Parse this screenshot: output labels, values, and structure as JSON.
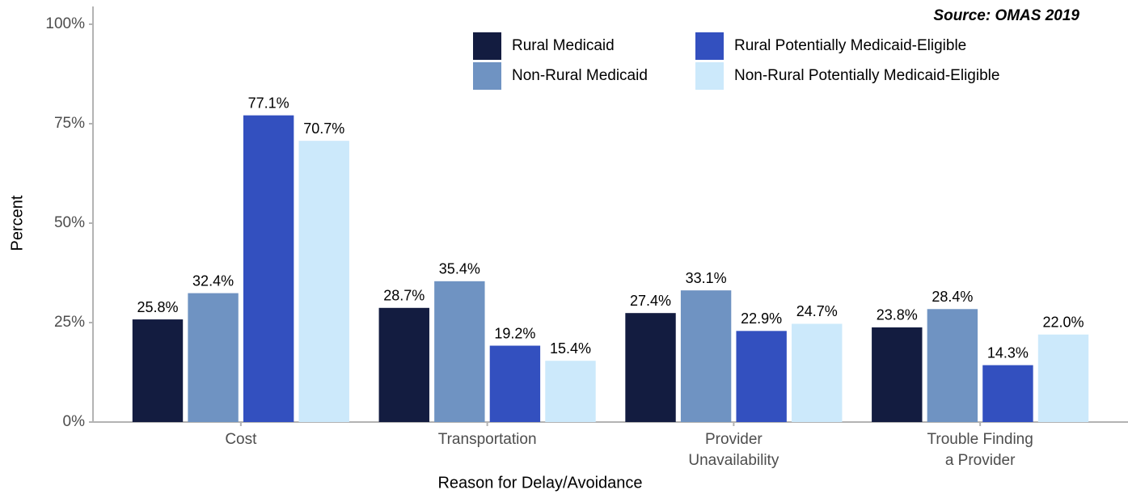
{
  "chart_data": {
    "type": "bar",
    "annotation": "Source: OMAS 2019",
    "x_label": "Reason for Delay/Avoidance",
    "y_label": "Percent",
    "categories": [
      "Cost",
      "Transportation",
      "Provider\nUnavailability",
      "Trouble Finding\na Provider"
    ],
    "series": [
      {
        "name": "Rural Medicaid",
        "color": "#131c40",
        "values": [
          25.8,
          28.7,
          27.4,
          23.8
        ],
        "value_labels": [
          "25.8%",
          "28.7%",
          "27.4%",
          "23.8%"
        ]
      },
      {
        "name": "Non-Rural Medicaid",
        "color": "#6f93c2",
        "values": [
          32.4,
          35.4,
          33.1,
          28.4
        ],
        "value_labels": [
          "32.4%",
          "35.4%",
          "33.1%",
          "28.4%"
        ]
      },
      {
        "name": "Rural Potentially Medicaid-Eligible",
        "color": "#3350bf",
        "values": [
          77.1,
          19.2,
          22.9,
          14.3
        ],
        "value_labels": [
          "77.1%",
          "19.2%",
          "22.9%",
          "14.3%"
        ]
      },
      {
        "name": "Non-Rural Potentially Medicaid-Eligible",
        "color": "#cce9fb",
        "values": [
          70.7,
          15.4,
          24.7,
          22.0
        ],
        "value_labels": [
          "70.7%",
          "15.4%",
          "24.7%",
          "22.0%"
        ]
      }
    ],
    "ylim": [
      0,
      100
    ],
    "yticks": [
      {
        "value": 0,
        "label": "0%"
      },
      {
        "value": 25,
        "label": "25%"
      },
      {
        "value": 50,
        "label": "50%"
      },
      {
        "value": 75,
        "label": "75%"
      },
      {
        "value": 100,
        "label": "100%"
      }
    ],
    "grid": false,
    "legend": "top-right"
  }
}
